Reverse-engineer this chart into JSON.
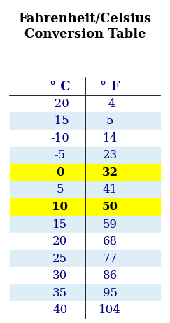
{
  "title": "Fahrenheit/Celsius\nConversion Table",
  "col_headers": [
    "° C",
    "° F"
  ],
  "rows": [
    [
      "-20",
      "-4"
    ],
    [
      "-15",
      "5"
    ],
    [
      "-10",
      "14"
    ],
    [
      "-5",
      "23"
    ],
    [
      "0",
      "32"
    ],
    [
      "5",
      "41"
    ],
    [
      "10",
      "50"
    ],
    [
      "15",
      "59"
    ],
    [
      "20",
      "68"
    ],
    [
      "25",
      "77"
    ],
    [
      "30",
      "86"
    ],
    [
      "35",
      "95"
    ],
    [
      "40",
      "104"
    ]
  ],
  "highlight_yellow": [
    4,
    6
  ],
  "row_colors_alt": [
    "#ffffff",
    "#ddeef6"
  ],
  "highlight_color": "#ffff00",
  "title_fontsize": 13,
  "header_fontsize": 13,
  "data_fontsize": 12,
  "title_color": "#000000",
  "header_color": "#000080",
  "data_color": "#000080",
  "highlight_text_color": "#000000",
  "bg_color": "#ffffff"
}
